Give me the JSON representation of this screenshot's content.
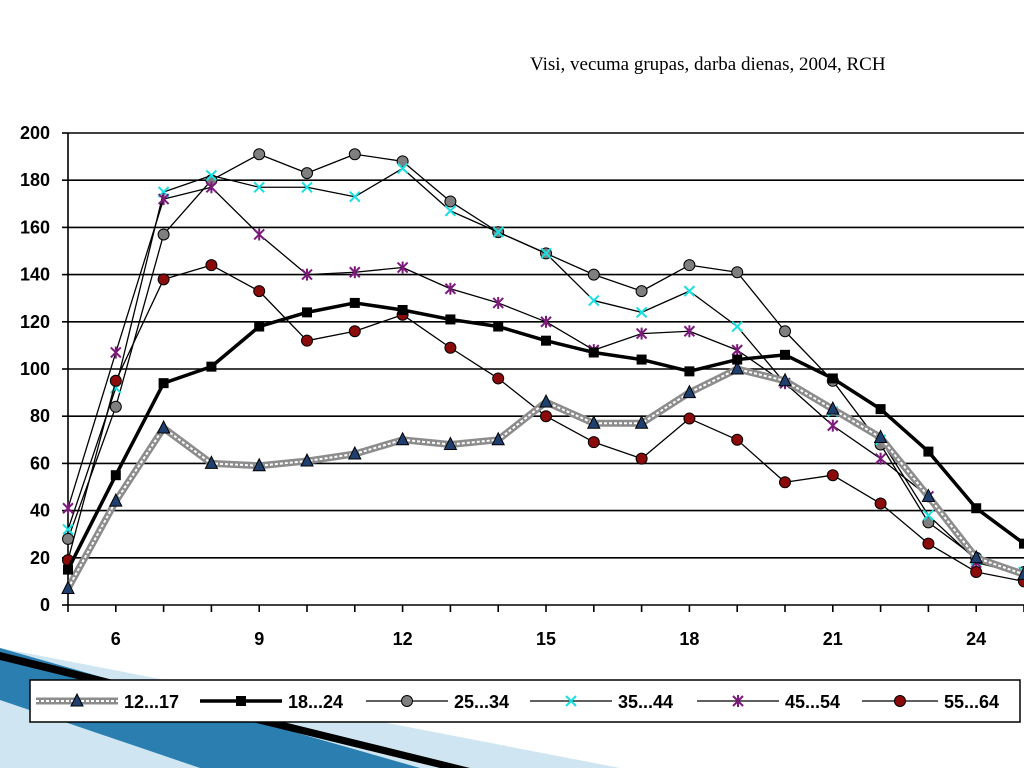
{
  "slide": {
    "title": "Visi, vecuma grupas, darba dienas, 2004, RCH"
  },
  "chart_data": {
    "type": "line",
    "title": "Visi, vecuma grupas, darba dienas, 2004, RCH",
    "xlabel": "",
    "ylabel": "",
    "x": [
      5,
      6,
      7,
      8,
      9,
      10,
      11,
      12,
      13,
      14,
      15,
      16,
      17,
      18,
      19,
      20,
      21,
      22,
      23,
      24,
      25
    ],
    "xlim": [
      5,
      25
    ],
    "ylim": [
      0,
      200
    ],
    "x_ticks": [
      6,
      9,
      12,
      15,
      18,
      21,
      24
    ],
    "y_ticks": [
      0,
      20,
      40,
      60,
      80,
      100,
      120,
      140,
      160,
      180,
      200
    ],
    "grid": "horizontal",
    "legend_position": "bottom",
    "series": [
      {
        "name": "12...17",
        "color": "#1f3f6f",
        "marker": "triangle",
        "line": "grey-double",
        "values": [
          7,
          44,
          75,
          60,
          59,
          61,
          64,
          70,
          68,
          70,
          86,
          77,
          77,
          90,
          100,
          95,
          83,
          71,
          46,
          20,
          13
        ]
      },
      {
        "name": "18...24",
        "color": "#000000",
        "marker": "square",
        "line": "bold",
        "values": [
          15,
          55,
          94,
          101,
          118,
          124,
          128,
          125,
          121,
          118,
          112,
          107,
          104,
          99,
          104,
          106,
          96,
          83,
          65,
          41,
          26
        ]
      },
      {
        "name": "25...34",
        "color": "#7f7f7f",
        "marker": "circle",
        "line": "thin",
        "values": [
          28,
          84,
          157,
          180,
          191,
          183,
          191,
          188,
          171,
          158,
          149,
          140,
          133,
          144,
          141,
          116,
          95,
          68,
          35,
          20,
          14
        ]
      },
      {
        "name": "35...44",
        "color": "#19e0e0",
        "marker": "x",
        "line": "thin",
        "values": [
          32,
          92,
          175,
          182,
          177,
          177,
          173,
          185,
          167,
          158,
          149,
          129,
          124,
          133,
          118,
          94,
          82,
          70,
          38,
          19,
          14
        ]
      },
      {
        "name": "45...54",
        "color": "#7b1a7b",
        "marker": "star",
        "line": "thin",
        "values": [
          41,
          107,
          172,
          177,
          157,
          140,
          141,
          143,
          134,
          128,
          120,
          108,
          115,
          116,
          108,
          94,
          76,
          62,
          46,
          18,
          13
        ]
      },
      {
        "name": "55...64",
        "color": "#8b0a0a",
        "marker": "circle",
        "line": "thin",
        "values": [
          19,
          95,
          138,
          144,
          133,
          112,
          116,
          123,
          109,
          96,
          80,
          69,
          62,
          79,
          70,
          52,
          55,
          43,
          26,
          14,
          10
        ]
      }
    ]
  }
}
